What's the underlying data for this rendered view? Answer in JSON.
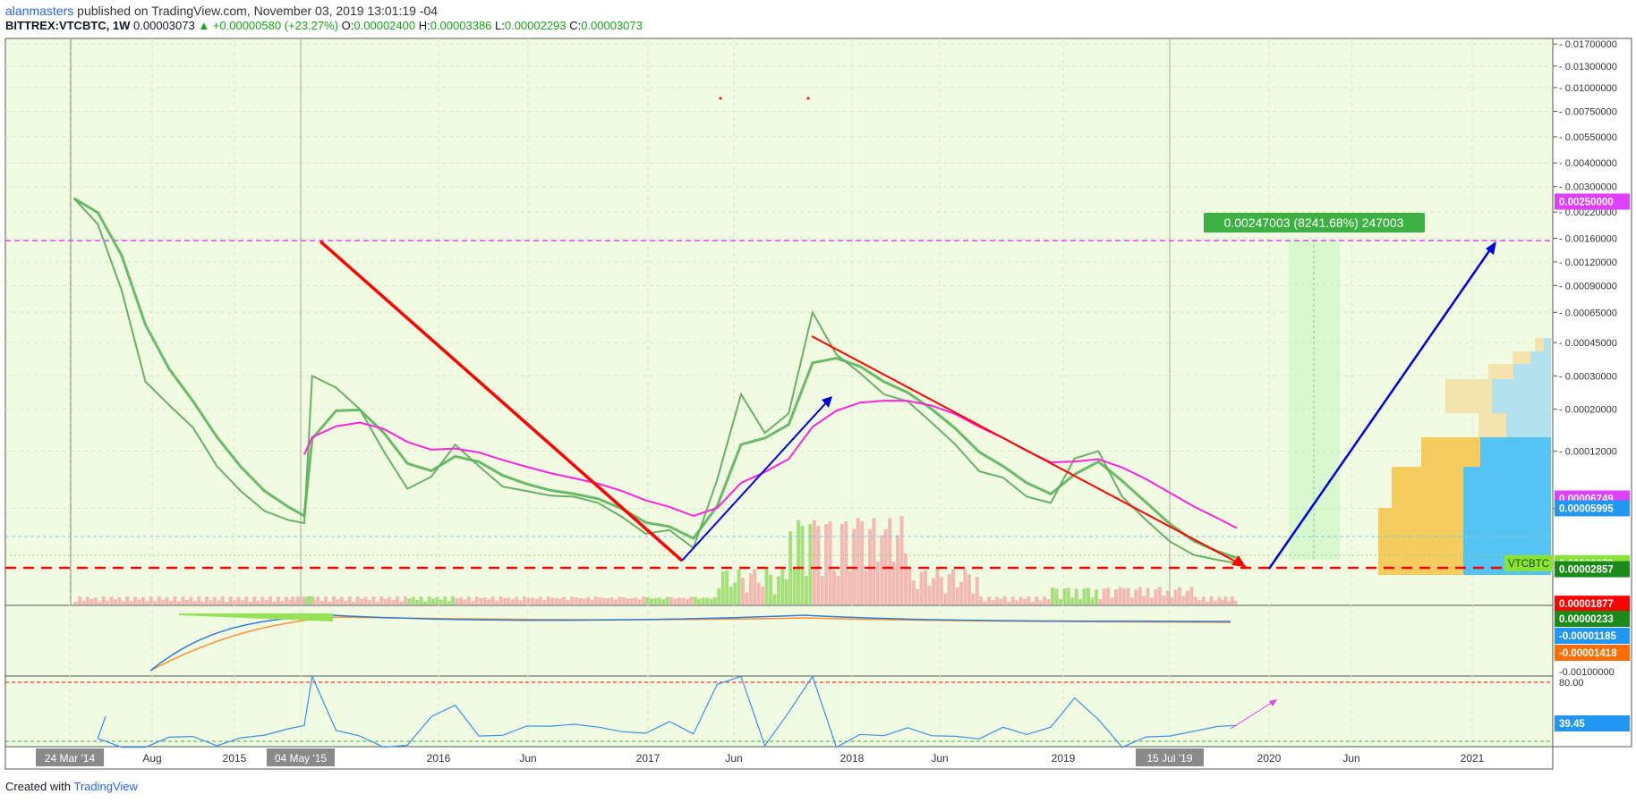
{
  "header": {
    "author": "alanmasters",
    "published_text": "published on TradingView.com, November 03, 2019 13:01:19 -04",
    "symbol": "BITTREX:VTCBTC, 1W",
    "price": "0.00003073",
    "change": "▲ +0.00000580 (+23.27%)",
    "open_label": "O:",
    "open": "0.00002400",
    "high_label": "H:",
    "high": "0.00003386",
    "low_label": "L:",
    "low": "0.00002293",
    "close_label": "C:",
    "close": "0.00003073"
  },
  "footer": {
    "created_with": "Created with",
    "brand": "TradingView"
  },
  "colors": {
    "background": "#f0fbe2",
    "price_line": "#5cb25c",
    "ma_line": "#ff22dd",
    "trend_red": "#ff0000",
    "trend_blue": "#0000dd",
    "rsi_line": "#3d8ee8",
    "volume_green": "#a7df7d",
    "volume_red": "#f3b9b4"
  },
  "chart_data": [
    {
      "type": "line",
      "title": "BITTREX:VTCBTC, 1W",
      "scale": "log",
      "x_ticks": [
        "24 Mar '14",
        "Aug",
        "2015",
        "04 May '15",
        "2016",
        "Jun",
        "2017",
        "Jun",
        "2018",
        "Jun",
        "2019",
        "15 Jul '19",
        "2020",
        "Jun",
        "2021"
      ],
      "y_ticks": [
        "0.01700000",
        "0.01300000",
        "0.01000000",
        "0.00750000",
        "0.00550000",
        "0.00400000",
        "0.00300000",
        "0.00220000",
        "0.00160000",
        "0.00120000",
        "0.00090000",
        "0.00065000",
        "0.00045000",
        "0.00030000",
        "0.00020000",
        "0.00012000",
        "0.00006000"
      ],
      "price_labels": [
        {
          "label": "",
          "value": "0.00250000",
          "color": "#e040fb"
        },
        {
          "label": "",
          "value": "0.00006749",
          "color": "#e040fb"
        },
        {
          "label": "",
          "value": "0.00005995",
          "color": "#2196f3"
        },
        {
          "label": "VTCBTC",
          "value": "0.00003073",
          "color": "#8ae234"
        },
        {
          "label": "",
          "value": "0.00002857",
          "color": "#1b8a1b"
        },
        {
          "label": "",
          "value": "0.00001877",
          "color": "#ff0000"
        }
      ],
      "measure_label": "0.00247003 (8241.68%) 247003",
      "ylim": [
        1.86e-05,
        0.0178
      ],
      "series": [
        {
          "x": [
            "2014-03-24",
            "2014-05-05",
            "2014-06-16",
            "2014-07-28",
            "2014-09-08",
            "2014-10-20",
            "2014-12-01",
            "2015-01-12",
            "2015-02-23",
            "2015-04-06",
            "2015-05-04",
            "2015-05-18",
            "2015-06-29",
            "2015-08-10",
            "2015-09-21",
            "2015-11-02",
            "2015-12-14",
            "2016-01-25",
            "2016-03-07",
            "2016-04-18",
            "2016-05-30",
            "2016-07-11",
            "2016-08-22",
            "2016-10-03",
            "2016-11-14",
            "2016-12-26",
            "2017-02-06",
            "2017-03-20",
            "2017-05-01",
            "2017-06-12",
            "2017-07-24",
            "2017-09-04",
            "2017-10-16",
            "2017-11-27",
            "2018-01-08",
            "2018-02-19",
            "2018-04-02",
            "2018-05-14",
            "2018-06-25",
            "2018-08-06",
            "2018-09-17",
            "2018-10-29",
            "2018-12-10",
            "2019-01-21",
            "2019-03-04",
            "2019-04-15",
            "2019-05-27",
            "2019-07-08",
            "2019-08-19",
            "2019-09-30",
            "2019-11-03"
          ],
          "values": [
            0.0026,
            0.0019,
            0.00085,
            0.00028,
            0.00021,
            0.00016,
            0.0001,
            7.4e-05,
            5.8e-05,
            5.2e-05,
            5e-05,
            0.0003,
            0.00026,
            0.0002,
            0.00012,
            7.6e-05,
            8.8e-05,
            0.00013,
            0.0001,
            7.8e-05,
            7.4e-05,
            7e-05,
            6.9e-05,
            6.4e-05,
            5.4e-05,
            4.4e-05,
            4.6e-05,
            3.7e-05,
            8.5e-05,
            0.00024,
            0.00015,
            0.00019,
            0.00065,
            0.00039,
            0.00031,
            0.00024,
            0.00022,
            0.00017,
            0.00013,
            9.4e-05,
            8.7e-05,
            6.9e-05,
            6.4e-05,
            0.00011,
            0.00012,
            6.9e-05,
            5.2e-05,
            4e-05,
            3.4e-05,
            3.2e-05,
            3.073e-05
          ]
        }
      ]
    },
    {
      "type": "line",
      "title": "",
      "y_ticks": [
        "-0.00100000"
      ],
      "price_labels": [
        {
          "label": "",
          "value": "0.00000233",
          "color": "#1b8a1b"
        },
        {
          "label": "",
          "value": "-0.00001185",
          "color": "#2196f3"
        },
        {
          "label": "",
          "value": "-0.00001418",
          "color": "#ff6d00"
        }
      ]
    },
    {
      "type": "line",
      "title": "",
      "y_ticks": [
        "80.00"
      ],
      "price_labels": [
        {
          "label": "",
          "value": "39.45",
          "color": "#2196f3"
        }
      ]
    }
  ]
}
